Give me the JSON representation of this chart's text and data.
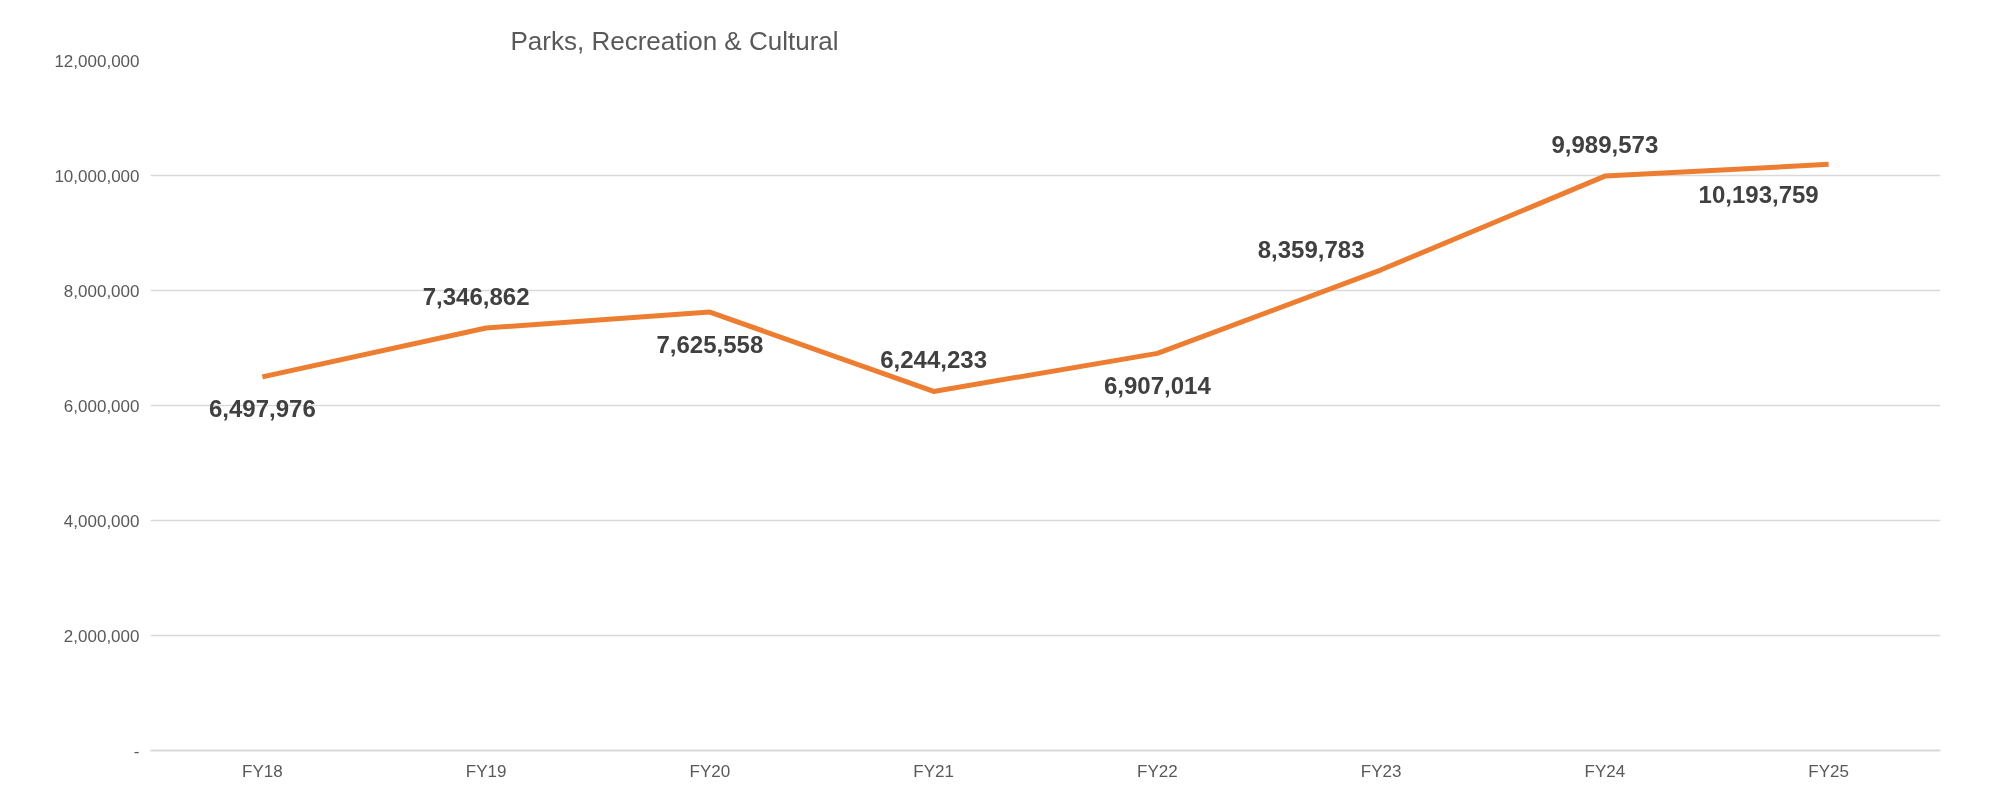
{
  "chart_data": {
    "type": "line",
    "title": "Parks, Recreation & Cultural",
    "categories": [
      "FY18",
      "FY19",
      "FY20",
      "FY21",
      "FY22",
      "FY23",
      "FY24",
      "FY25"
    ],
    "series": [
      {
        "color": "#ed7d31",
        "values": [
          6497976,
          7346862,
          7625558,
          6244233,
          6907014,
          8359783,
          9989573,
          10193759
        ]
      }
    ],
    "ylim": [
      0,
      12000000
    ],
    "yticks": [
      {
        "value": 0,
        "label": "-"
      },
      {
        "value": 2000000,
        "label": "2,000,000"
      },
      {
        "value": 4000000,
        "label": "4,000,000"
      },
      {
        "value": 6000000,
        "label": "6,000,000"
      },
      {
        "value": 8000000,
        "label": "8,000,000"
      },
      {
        "value": 10000000,
        "label": "10,000,000"
      },
      {
        "value": 12000000,
        "label": "12,000,000"
      }
    ],
    "grid": "y",
    "marker": "none",
    "line_style": "solid",
    "value_labels": [
      "6,497,976",
      "7,346,862",
      "7,625,558",
      "6,244,233",
      "6,907,014",
      "8,359,783",
      "9,989,573",
      "10,193,759"
    ]
  }
}
